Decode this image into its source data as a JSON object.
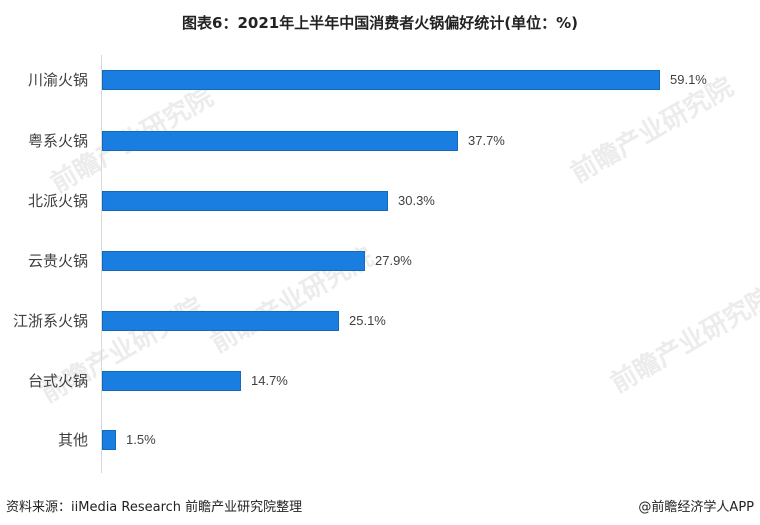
{
  "title": "图表6：2021年上半年中国消费者火锅偏好统计(单位：%)",
  "source": "资料来源：iiMedia Research 前瞻产业研究院整理",
  "credit": "@前瞻经济学人APP",
  "watermark": "前瞻产业研究院",
  "colors": {
    "bar": "#1a7ee0",
    "axis": "#d9d9d9"
  },
  "chart_data": {
    "type": "bar",
    "orientation": "horizontal",
    "title": "图表6：2021年上半年中国消费者火锅偏好统计(单位：%)",
    "xlabel": "",
    "ylabel": "",
    "unit": "%",
    "grid": false,
    "legend": "none",
    "categories": [
      "川渝火锅",
      "粤系火锅",
      "北派火锅",
      "云贵火锅",
      "江浙系火锅",
      "台式火锅",
      "其他"
    ],
    "values": [
      59.1,
      37.7,
      30.3,
      27.9,
      25.1,
      14.7,
      1.5
    ],
    "labels": [
      "59.1%",
      "37.7%",
      "30.3%",
      "27.9%",
      "25.1%",
      "14.7%",
      "1.5%"
    ]
  }
}
